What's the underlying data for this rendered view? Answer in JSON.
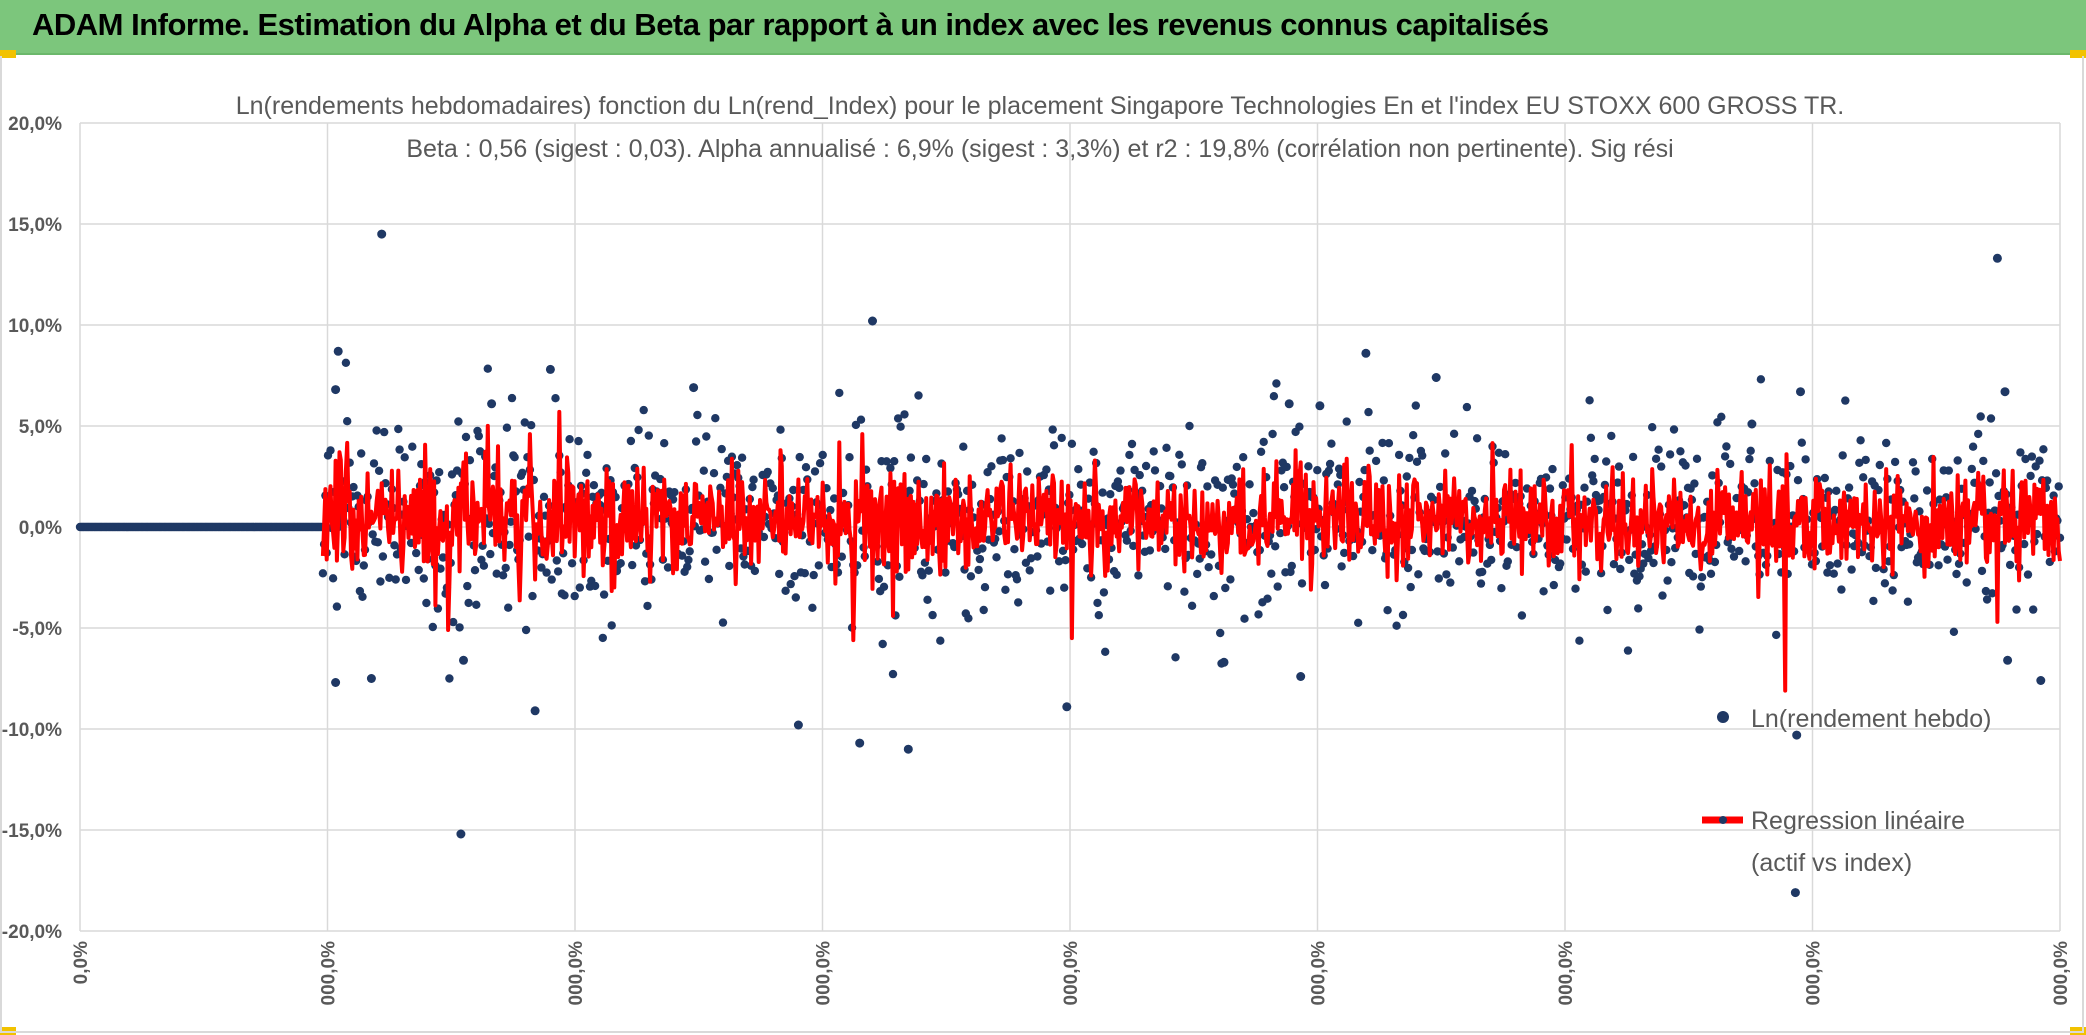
{
  "banner": {
    "title": "ADAM Informe. Estimation du Alpha et du Beta par rapport à un index avec les revenus connus capitalisés"
  },
  "colors": {
    "banner_bg": "#7cc67c",
    "corner_accent": "#f2c200",
    "scatter": "#1f3864",
    "regression": "#ff0000",
    "grid": "#d9d9d9",
    "text": "#595959"
  },
  "chart_data": {
    "type": "scatter",
    "title_line1": "Ln(rendements hebdomadaires) fonction du Ln(rend_Index) pour le placement Singapore Technologies En et l'index EU STOXX 600 GROSS TR.",
    "title_line2": "Beta : 0,56 (sigest : 0,03). Alpha annualisé : 6,9% (sigest : 3,3%) et r2 : 19,8% (corrélation non pertinente). Sig rési",
    "ylim": [
      -0.2,
      0.2
    ],
    "yticks": [
      0.2,
      0.15,
      0.1,
      0.05,
      0.0,
      -0.05,
      -0.1,
      -0.15,
      -0.2
    ],
    "ytick_labels": [
      "20,0%",
      "15,0%",
      "10,0%",
      "5,0%",
      "0,0%",
      "-5,0%",
      "-10,0%",
      "-15,0%",
      "-20,0%"
    ],
    "xtick_labels": [
      "0,0%",
      "000,0%",
      "000,0%",
      "000,0%",
      "000,0%",
      "000,0%",
      "000,0%",
      "000,0%",
      "000,0%"
    ],
    "n_points": 1550,
    "zero_segment_end": 190,
    "series": [
      {
        "name": "Ln(rendement hebdo)",
        "kind": "scatter",
        "color": "#1f3864"
      },
      {
        "name": "Regression linéaire",
        "name_line2": "(actif vs index)",
        "kind": "line",
        "color": "#ff0000"
      }
    ],
    "outliers": [
      {
        "i": 236,
        "v": 0.145
      },
      {
        "i": 322,
        "v": 0.061
      },
      {
        "i": 298,
        "v": -0.152
      },
      {
        "i": 620,
        "v": 0.102
      },
      {
        "i": 648,
        "v": -0.11
      },
      {
        "i": 1006,
        "v": 0.086
      },
      {
        "i": 1061,
        "v": 0.074
      },
      {
        "i": 1342,
        "v": -0.181
      },
      {
        "i": 1343,
        "v": -0.103
      },
      {
        "i": 1346,
        "v": 0.067
      },
      {
        "i": 1500,
        "v": 0.133
      },
      {
        "i": 1506,
        "v": 0.067
      },
      {
        "i": 1508,
        "v": -0.066
      },
      {
        "i": 1534,
        "v": -0.076
      },
      {
        "i": 562,
        "v": -0.098
      },
      {
        "i": 610,
        "v": -0.107
      },
      {
        "i": 772,
        "v": -0.089
      },
      {
        "i": 202,
        "v": 0.087
      },
      {
        "i": 200,
        "v": 0.068
      },
      {
        "i": 200,
        "v": -0.077
      },
      {
        "i": 368,
        "v": 0.078
      },
      {
        "i": 356,
        "v": -0.091
      },
      {
        "i": 480,
        "v": 0.069
      },
      {
        "i": 228,
        "v": -0.075
      },
      {
        "i": 300,
        "v": -0.066
      },
      {
        "i": 946,
        "v": 0.061
      },
      {
        "i": 970,
        "v": 0.06
      },
      {
        "i": 895,
        "v": -0.067
      },
      {
        "i": 955,
        "v": -0.074
      },
      {
        "i": 1308,
        "v": 0.051
      }
    ],
    "regression_spikes": [
      {
        "i": 203,
        "v": 0.037
      },
      {
        "i": 206,
        "v": -0.012
      },
      {
        "i": 288,
        "v": -0.051
      },
      {
        "i": 300,
        "v": 0.032
      },
      {
        "i": 352,
        "v": 0.046
      },
      {
        "i": 375,
        "v": 0.057
      },
      {
        "i": 356,
        "v": -0.026
      },
      {
        "i": 612,
        "v": 0.046
      },
      {
        "i": 605,
        "v": -0.056
      },
      {
        "i": 636,
        "v": -0.044
      },
      {
        "i": 776,
        "v": -0.055
      },
      {
        "i": 1334,
        "v": -0.081
      },
      {
        "i": 1335,
        "v": 0.036
      },
      {
        "i": 1500,
        "v": -0.047
      },
      {
        "i": 1505,
        "v": 0.028
      },
      {
        "i": 955,
        "v": 0.032
      },
      {
        "i": 963,
        "v": -0.031
      }
    ]
  }
}
